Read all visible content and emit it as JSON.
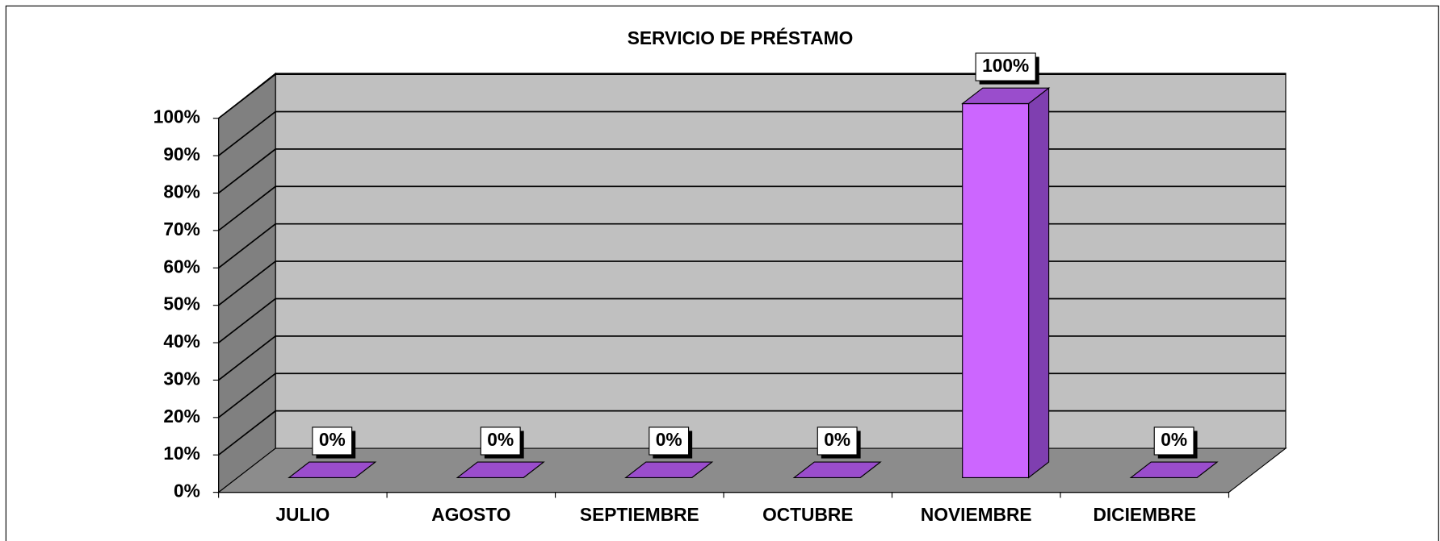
{
  "chart_data": {
    "type": "bar3d",
    "title": "SERVICIO DE PRÉSTAMO",
    "categories": [
      "JULIO",
      "AGOSTO",
      "SEPTIEMBRE",
      "OCTUBRE",
      "NOVIEMBRE",
      "DICIEMBRE"
    ],
    "values": [
      0,
      0,
      0,
      0,
      100,
      0
    ],
    "value_labels": [
      "0%",
      "0%",
      "0%",
      "0%",
      "100%",
      "0%"
    ],
    "color": "#cc66ff",
    "ylim": [
      0,
      100
    ],
    "yticks": [
      {
        "value": 0,
        "label": "0%"
      },
      {
        "value": 10,
        "label": "10%"
      },
      {
        "value": 20,
        "label": "20%"
      },
      {
        "value": 30,
        "label": "30%"
      },
      {
        "value": 40,
        "label": "40%"
      },
      {
        "value": 50,
        "label": "50%"
      },
      {
        "value": 60,
        "label": "60%"
      },
      {
        "value": 70,
        "label": "70%"
      },
      {
        "value": 80,
        "label": "80%"
      },
      {
        "value": 90,
        "label": "90%"
      },
      {
        "value": 100,
        "label": "100%"
      }
    ],
    "grid": true
  }
}
